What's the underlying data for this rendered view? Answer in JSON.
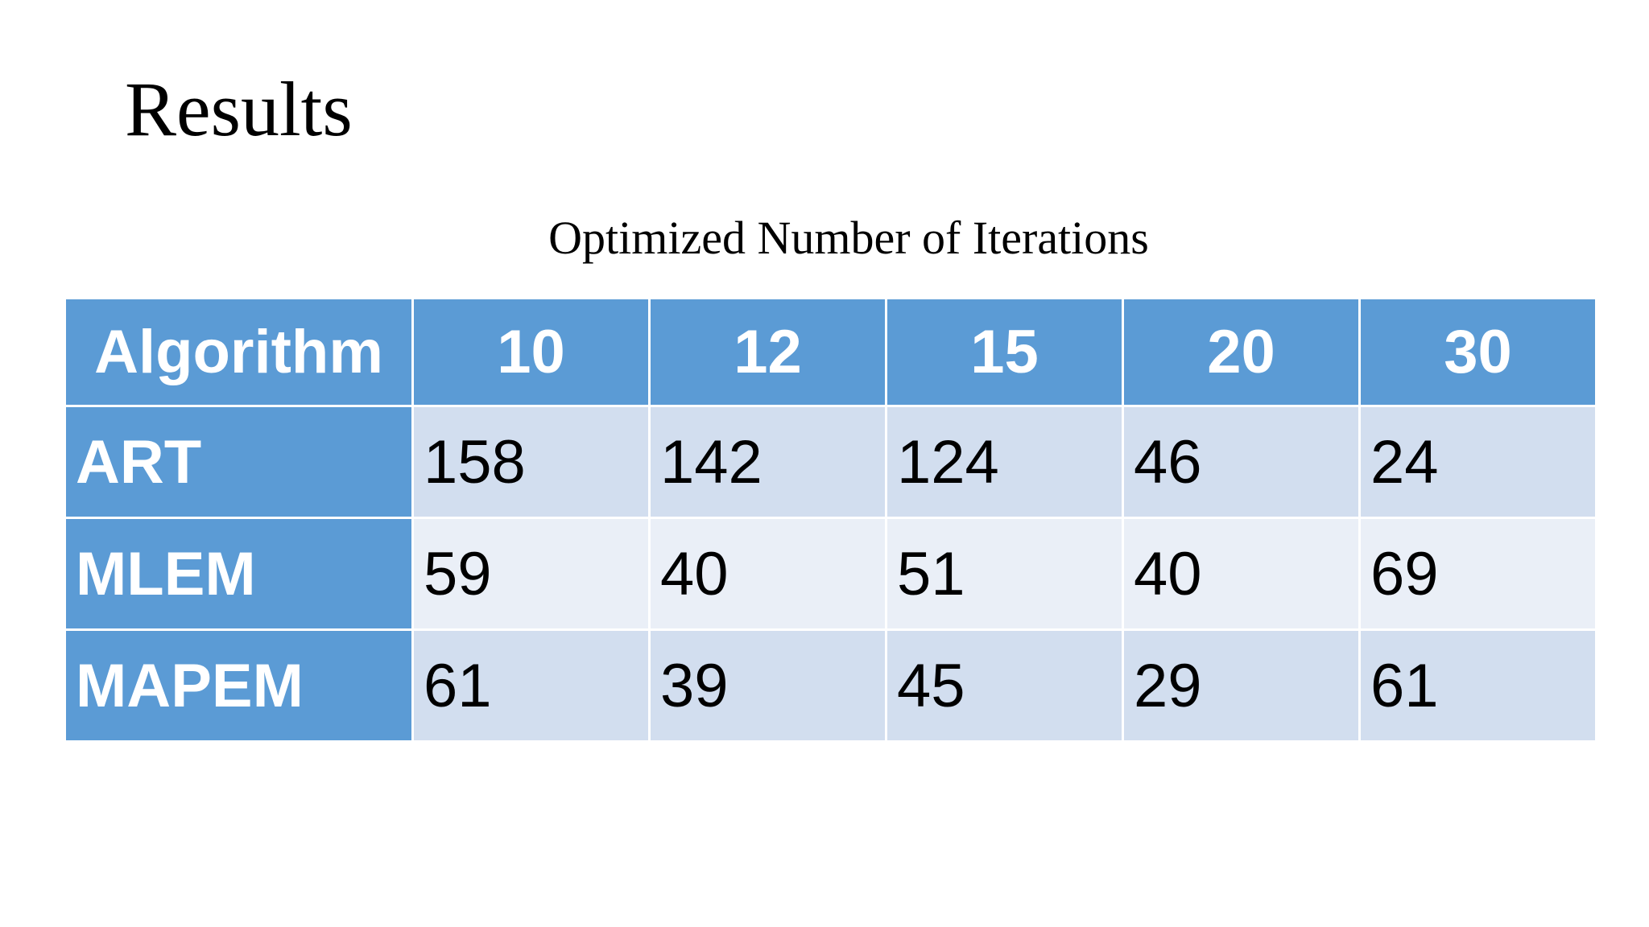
{
  "title": "Results",
  "table": {
    "caption": "Optimized Number of Iterations",
    "header": [
      "Algorithm",
      "10",
      "12",
      "15",
      "20",
      "30"
    ],
    "rows": [
      [
        "ART",
        158,
        142,
        124,
        46,
        24
      ],
      [
        "MLEM",
        59,
        40,
        51,
        40,
        69
      ],
      [
        "MAPEM",
        61,
        39,
        45,
        29,
        61
      ]
    ]
  }
}
